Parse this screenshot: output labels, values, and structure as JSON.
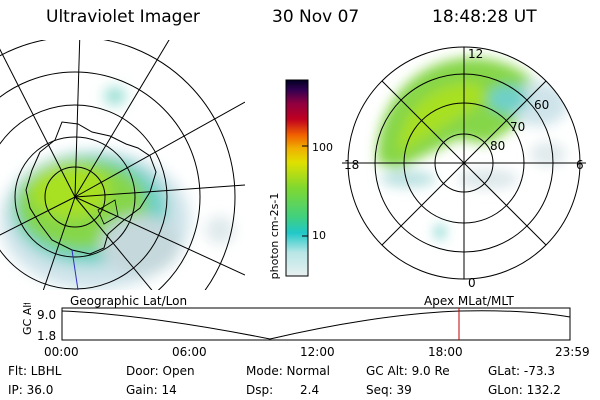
{
  "header": {
    "instrument": "Ultraviolet Imager",
    "date": "30 Nov 07",
    "time": "18:48:28 UT"
  },
  "colorbar": {
    "label": "photon cm-2s-1",
    "ticks": [
      "100",
      "10"
    ]
  },
  "polar_plot": {
    "mlt_labels": {
      "top": "12",
      "left": "18",
      "right": "6",
      "bottom": "0"
    },
    "lat_labels": [
      "60",
      "70",
      "80"
    ]
  },
  "map_labels": {
    "left": "Geographic Lat/Lon",
    "right": "Apex MLat/MLT"
  },
  "altitude_plot": {
    "ylabel": "GC Alt",
    "y_ticks": [
      "9.0",
      "1.8"
    ],
    "x_ticks": [
      "00:00",
      "06:00",
      "12:00",
      "18:00",
      "23:59"
    ],
    "marker_color": "#c00000"
  },
  "info": {
    "row1": {
      "filter": "Flt: LBHL",
      "door": "Door: Open",
      "mode": "Mode: Normal",
      "gc_alt": "GC Alt: 9.0 Re",
      "glat": "GLat: -73.3"
    },
    "row2": {
      "ip": "IP: 36.0",
      "gain": "Gain: 14",
      "dsp_label": "Dsp:",
      "dsp_value": "2.4",
      "seq": "Seq: 39",
      "glon": "GLon: 132.2"
    }
  }
}
